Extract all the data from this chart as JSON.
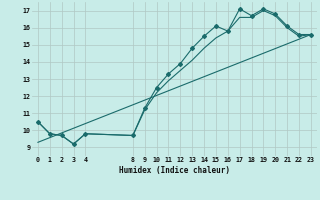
{
  "title": "",
  "xlabel": "Humidex (Indice chaleur)",
  "background_color": "#c8ece8",
  "grid_color": "#b0c8c4",
  "line_color": "#1a6b6b",
  "xlim": [
    -0.5,
    23.5
  ],
  "ylim": [
    8.5,
    17.5
  ],
  "xticks": [
    0,
    1,
    2,
    3,
    4,
    8,
    9,
    10,
    11,
    12,
    13,
    14,
    15,
    16,
    17,
    18,
    19,
    20,
    21,
    22,
    23
  ],
  "yticks": [
    9,
    10,
    11,
    12,
    13,
    14,
    15,
    16,
    17
  ],
  "series1_x": [
    0,
    1,
    2,
    3,
    4,
    8,
    9,
    10,
    11,
    12,
    13,
    14,
    15,
    16,
    17,
    18,
    19,
    20,
    21,
    22,
    23
  ],
  "series1_y": [
    10.5,
    9.8,
    9.7,
    9.2,
    9.8,
    9.7,
    11.3,
    12.5,
    13.3,
    13.9,
    14.8,
    15.5,
    16.1,
    15.8,
    17.1,
    16.7,
    17.1,
    16.8,
    16.1,
    15.6,
    15.6
  ],
  "series2_x": [
    0,
    1,
    2,
    3,
    4,
    8,
    9,
    10,
    11,
    12,
    13,
    14,
    15,
    16,
    17,
    18,
    19,
    20,
    21,
    22,
    23
  ],
  "series2_y": [
    10.5,
    9.8,
    9.7,
    9.2,
    9.8,
    9.7,
    11.2,
    12.2,
    12.9,
    13.5,
    14.1,
    14.8,
    15.4,
    15.8,
    16.6,
    16.6,
    17.0,
    16.7,
    16.0,
    15.5,
    15.6
  ],
  "series3_x": [
    0,
    23
  ],
  "series3_y": [
    9.3,
    15.6
  ]
}
